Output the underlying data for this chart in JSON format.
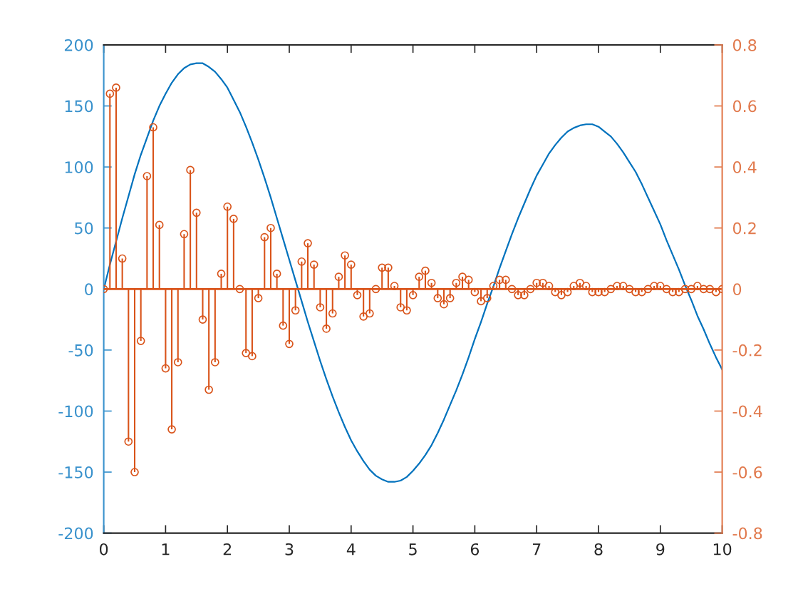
{
  "chart_data": {
    "type": "line",
    "x": [
      0,
      0.1,
      0.2,
      0.3,
      0.4,
      0.5,
      0.6,
      0.7,
      0.8,
      0.9,
      1,
      1.1,
      1.2,
      1.3,
      1.4,
      1.5,
      1.6,
      1.7,
      1.8,
      1.9,
      2,
      2.1,
      2.2,
      2.3,
      2.4,
      2.5,
      2.6,
      2.7,
      2.8,
      2.9,
      3,
      3.1,
      3.2,
      3.3,
      3.4,
      3.5,
      3.6,
      3.7,
      3.8,
      3.9,
      4,
      4.1,
      4.2,
      4.3,
      4.4,
      4.5,
      4.6,
      4.7,
      4.8,
      4.9,
      5,
      5.1,
      5.2,
      5.3,
      5.4,
      5.5,
      5.6,
      5.7,
      5.8,
      5.9,
      6,
      6.1,
      6.2,
      6.3,
      6.4,
      6.5,
      6.6,
      6.7,
      6.8,
      6.9,
      7,
      7.1,
      7.2,
      7.3,
      7.4,
      7.5,
      7.6,
      7.7,
      7.8,
      7.9,
      8,
      8.1,
      8.2,
      8.3,
      8.4,
      8.5,
      8.6,
      8.7,
      8.8,
      8.9,
      9,
      9.1,
      9.2,
      9.3,
      9.4,
      9.5,
      9.6,
      9.7,
      9.8,
      9.9,
      10
    ],
    "xlim": [
      0,
      10
    ],
    "xticks": [
      0,
      1,
      2,
      3,
      4,
      5,
      6,
      7,
      8,
      9,
      10
    ],
    "ylim": [
      -200,
      200
    ],
    "yticks": [
      -200,
      -150,
      -100,
      -50,
      0,
      50,
      100,
      150,
      200
    ],
    "y2lim": [
      -0.8,
      0.8
    ],
    "y2ticks": [
      -0.8,
      -0.6,
      -0.4,
      -0.2,
      0,
      0.2,
      0.4,
      0.6,
      0.8
    ],
    "series": [
      {
        "color": "#0072bd",
        "values": [
          0,
          20,
          39,
          58,
          76,
          94,
          110,
          124,
          138,
          150,
          160,
          169,
          176,
          181,
          184,
          185,
          185,
          182,
          178,
          172,
          165,
          155,
          145,
          133,
          120,
          106,
          91,
          75,
          58,
          41,
          24,
          7,
          -10,
          -27,
          -43,
          -59,
          -74,
          -88,
          -101,
          -113,
          -124,
          -133,
          -141,
          -148,
          -153,
          -156,
          -158,
          -158,
          -157,
          -154,
          -149,
          -143,
          -136,
          -128,
          -118,
          -107,
          -95,
          -83,
          -70,
          -56,
          -41,
          -27,
          -12,
          2,
          17,
          31,
          45,
          58,
          70,
          82,
          93,
          102,
          111,
          118,
          124,
          129,
          132,
          134,
          135,
          135,
          133,
          129,
          125,
          119,
          112,
          104,
          96,
          86,
          75,
          64,
          53,
          40,
          28,
          16,
          3,
          -9,
          -22,
          -33,
          -45,
          -56,
          -66
        ]
      },
      {
        "type": "lollipop",
        "axis": "y2",
        "color": "#d95319",
        "marker": "circle",
        "values": [
          0,
          0.64,
          0.66,
          0.1,
          -0.5,
          -0.6,
          -0.17,
          0.37,
          0.53,
          0.21,
          -0.26,
          -0.46,
          -0.24,
          0.18,
          0.39,
          0.25,
          -0.1,
          -0.33,
          -0.24,
          0.05,
          0.27,
          0.23,
          0,
          -0.21,
          -0.22,
          -0.03,
          0.17,
          0.2,
          0.05,
          -0.12,
          -0.18,
          -0.07,
          0.09,
          0.15,
          0.08,
          -0.06,
          -0.13,
          -0.08,
          0.04,
          0.11,
          0.08,
          -0.02,
          -0.09,
          -0.08,
          0,
          0.07,
          0.07,
          0.01,
          -0.06,
          -0.07,
          -0.02,
          0.04,
          0.06,
          0.02,
          -0.03,
          -0.05,
          -0.03,
          0.02,
          0.04,
          0.03,
          -0.01,
          -0.04,
          -0.03,
          0.01,
          0.03,
          0.03,
          0,
          -0.02,
          -0.02,
          0,
          0.02,
          0.02,
          0.01,
          -0.01,
          -0.02,
          -0.01,
          0.01,
          0.02,
          0.01,
          -0.01,
          -0.01,
          -0.01,
          0,
          0.01,
          0.01,
          0,
          -0.01,
          -0.01,
          0,
          0.01,
          0.01,
          0,
          -0.01,
          -0.01,
          0,
          0,
          0.01,
          0,
          0,
          -0.01,
          0
        ]
      }
    ],
    "ref_lines": [
      {
        "axis": "y2",
        "value": 0,
        "color": "#d95319"
      }
    ]
  }
}
